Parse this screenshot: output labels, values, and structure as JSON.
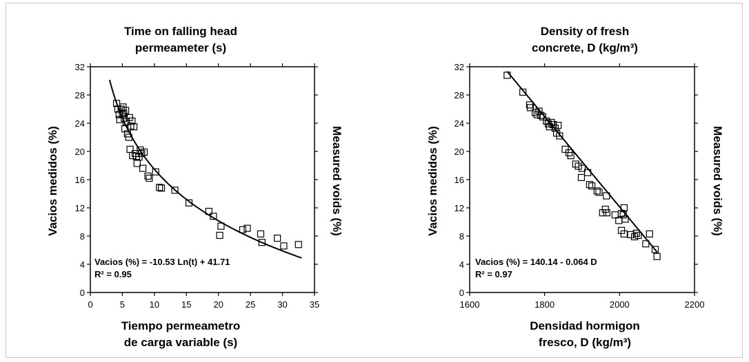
{
  "chart_data": [
    {
      "type": "scatter",
      "title": [
        "Time on falling head",
        "permeameter (s)"
      ],
      "xlabel": [
        "Tiempo permeametro",
        "de carga variable (s)"
      ],
      "ylabel": "Vacios medidos (%)",
      "ylabel_right": "Measured voids (%)",
      "xlim": [
        0,
        35
      ],
      "ylim": [
        0,
        32
      ],
      "xticks": [
        0,
        5,
        10,
        15,
        20,
        25,
        30,
        35
      ],
      "yticks": [
        0,
        4,
        8,
        12,
        16,
        20,
        24,
        28,
        32
      ],
      "annotation": [
        "Vacios (%) = -10.53 Ln(t) + 41.71",
        "R² = 0.95"
      ],
      "fit": {
        "kind": "log",
        "a": -10.53,
        "b": 41.71,
        "x_range": [
          3.0,
          33.0
        ]
      },
      "points": [
        [
          4.1,
          26.8
        ],
        [
          4.3,
          26.0
        ],
        [
          4.5,
          25.2
        ],
        [
          4.6,
          24.5
        ],
        [
          4.8,
          26.0
        ],
        [
          5.0,
          25.3
        ],
        [
          5.1,
          26.3
        ],
        [
          5.2,
          25.4
        ],
        [
          5.3,
          24.7
        ],
        [
          5.4,
          23.2
        ],
        [
          5.5,
          25.8
        ],
        [
          5.6,
          24.2
        ],
        [
          5.8,
          22.5
        ],
        [
          6.0,
          22.0
        ],
        [
          6.1,
          24.8
        ],
        [
          6.2,
          20.3
        ],
        [
          6.3,
          23.6
        ],
        [
          6.5,
          24.3
        ],
        [
          6.6,
          19.4
        ],
        [
          6.8,
          23.5
        ],
        [
          7.0,
          19.7
        ],
        [
          7.2,
          19.3
        ],
        [
          7.3,
          18.3
        ],
        [
          7.6,
          19.2
        ],
        [
          7.8,
          20.2
        ],
        [
          8.0,
          19.7
        ],
        [
          8.2,
          17.6
        ],
        [
          8.4,
          19.9
        ],
        [
          9.0,
          16.5
        ],
        [
          9.2,
          16.2
        ],
        [
          10.2,
          17.1
        ],
        [
          10.8,
          14.9
        ],
        [
          11.1,
          14.8
        ],
        [
          13.2,
          14.5
        ],
        [
          15.4,
          12.7
        ],
        [
          18.5,
          11.5
        ],
        [
          19.2,
          10.8
        ],
        [
          20.2,
          8.1
        ],
        [
          20.4,
          9.4
        ],
        [
          23.8,
          8.9
        ],
        [
          24.5,
          9.1
        ],
        [
          26.6,
          8.3
        ],
        [
          26.8,
          7.1
        ],
        [
          29.2,
          7.7
        ],
        [
          30.2,
          6.6
        ],
        [
          32.5,
          6.8
        ]
      ]
    },
    {
      "type": "scatter",
      "title": [
        "Density of fresh",
        "concrete, D (kg/m³)"
      ],
      "xlabel": [
        "Densidad hormigon",
        "fresco, D (kg/m³)"
      ],
      "ylabel": "Vacios medidos (%)",
      "ylabel_right": "Measured voids (%)",
      "xlim": [
        1600,
        2200
      ],
      "ylim": [
        0,
        32
      ],
      "xticks": [
        1600,
        1800,
        2000,
        2200
      ],
      "yticks": [
        0,
        4,
        8,
        12,
        16,
        20,
        24,
        28,
        32
      ],
      "annotation": [
        "Vacios (%) = 140.14 - 0.064 D",
        "R² = 0.97"
      ],
      "fit": {
        "kind": "linear",
        "a": -0.064,
        "b": 140.14,
        "x_range": [
          1700,
          2100
        ]
      },
      "points": [
        [
          1700,
          30.8
        ],
        [
          1742,
          28.4
        ],
        [
          1760,
          26.6
        ],
        [
          1762,
          26.2
        ],
        [
          1775,
          25.5
        ],
        [
          1780,
          25.2
        ],
        [
          1785,
          25.7
        ],
        [
          1790,
          25.1
        ],
        [
          1795,
          24.9
        ],
        [
          1805,
          24.3
        ],
        [
          1810,
          23.9
        ],
        [
          1813,
          23.5
        ],
        [
          1818,
          24.1
        ],
        [
          1823,
          23.8
        ],
        [
          1828,
          23.3
        ],
        [
          1832,
          22.6
        ],
        [
          1836,
          23.7
        ],
        [
          1840,
          22.2
        ],
        [
          1855,
          20.3
        ],
        [
          1865,
          19.8
        ],
        [
          1870,
          19.4
        ],
        [
          1883,
          18.2
        ],
        [
          1890,
          17.9
        ],
        [
          1900,
          17.6
        ],
        [
          1898,
          16.3
        ],
        [
          1915,
          17.0
        ],
        [
          1920,
          15.3
        ],
        [
          1926,
          15.1
        ],
        [
          1940,
          14.4
        ],
        [
          1945,
          14.2
        ],
        [
          1955,
          11.3
        ],
        [
          1965,
          13.7
        ],
        [
          1962,
          11.8
        ],
        [
          1966,
          11.3
        ],
        [
          1988,
          11.0
        ],
        [
          1998,
          10.2
        ],
        [
          2005,
          11.2
        ],
        [
          2010,
          11.0
        ],
        [
          2012,
          12.0
        ],
        [
          2015,
          10.4
        ],
        [
          2005,
          8.8
        ],
        [
          2012,
          8.3
        ],
        [
          2030,
          8.2
        ],
        [
          2040,
          7.9
        ],
        [
          2045,
          8.4
        ],
        [
          2050,
          8.1
        ],
        [
          2070,
          6.9
        ],
        [
          2080,
          8.3
        ],
        [
          2095,
          6.1
        ],
        [
          2100,
          5.1
        ]
      ]
    }
  ]
}
